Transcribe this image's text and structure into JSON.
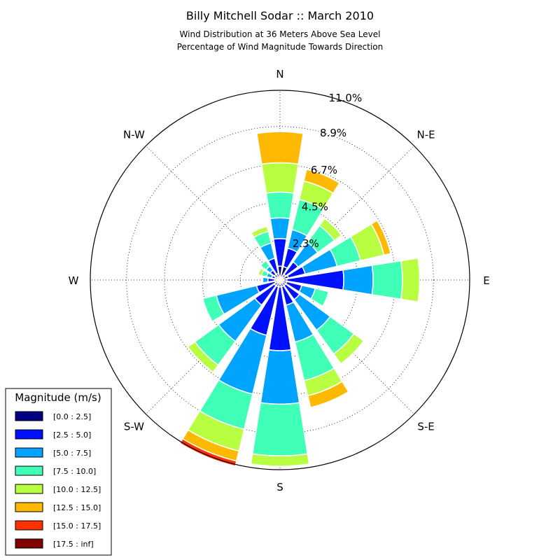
{
  "chart_data": {
    "type": "windrose",
    "title": "Billy Mitchell Sodar :: March 2010",
    "subtitle_lines": [
      "Wind Distribution at 36 Meters Above Sea Level",
      "Percentage of Wind Magnitude Towards Direction"
    ],
    "direction_labels": [
      "N",
      "N-E",
      "E",
      "S-E",
      "S",
      "S-W",
      "W",
      "N-W"
    ],
    "radial_ticks": [
      2.3,
      4.5,
      6.7,
      8.9,
      11.0
    ],
    "radial_tick_labels": [
      "2.3%",
      "4.5%",
      "6.7%",
      "8.9%",
      "11.0%"
    ],
    "radial_max": 11.0,
    "sector_width_deg": 18,
    "legend": {
      "title": "Magnitude (m/s)",
      "placement": "lower-left",
      "bins": [
        {
          "label": "[0.0 : 2.5]",
          "color": "#000080"
        },
        {
          "label": "[2.5 : 5.0]",
          "color": "#0010ff"
        },
        {
          "label": "[5.0 : 7.5]",
          "color": "#00a4ff"
        },
        {
          "label": "[7.5 : 10.0]",
          "color": "#40ffb7"
        },
        {
          "label": "[10.0 : 12.5]",
          "color": "#b7ff40"
        },
        {
          "label": "[12.5 : 15.0]",
          "color": "#ffb900"
        },
        {
          "label": "[15.0 : 17.5]",
          "color": "#ff3000"
        },
        {
          "label": "[17.5 : inf]",
          "color": "#800000"
        }
      ]
    },
    "sectors": [
      {
        "direction_deg": 0,
        "cumulative_pct": [
          0.8,
          2.4,
          3.6,
          5.1,
          6.8,
          8.6,
          8.6,
          8.6
        ]
      },
      {
        "direction_deg": 22.5,
        "cumulative_pct": [
          0.8,
          1.9,
          3.0,
          4.8,
          5.9,
          6.6,
          6.6,
          6.6
        ]
      },
      {
        "direction_deg": 45,
        "cumulative_pct": [
          0.4,
          1.3,
          2.7,
          3.9,
          4.4,
          4.4,
          4.4,
          4.4
        ]
      },
      {
        "direction_deg": 67.5,
        "cumulative_pct": [
          0.5,
          1.5,
          3.4,
          4.8,
          6.2,
          6.6,
          6.6,
          6.6
        ]
      },
      {
        "direction_deg": 90,
        "cumulative_pct": [
          0.4,
          3.7,
          5.4,
          7.1,
          8.1,
          8.1,
          8.1,
          8.1
        ]
      },
      {
        "direction_deg": 112.5,
        "cumulative_pct": [
          0.4,
          1.3,
          2.1,
          2.9,
          2.9,
          2.9,
          2.9,
          2.9
        ]
      },
      {
        "direction_deg": 135,
        "cumulative_pct": [
          0.4,
          1.4,
          3.6,
          5.3,
          6.0,
          6.0,
          6.0,
          6.0
        ]
      },
      {
        "direction_deg": 157.5,
        "cumulative_pct": [
          0.4,
          1.5,
          3.7,
          6.0,
          6.9,
          7.6,
          7.6,
          7.6
        ]
      },
      {
        "direction_deg": 180,
        "cumulative_pct": [
          0.4,
          4.1,
          7.2,
          10.2,
          10.8,
          10.8,
          10.8,
          10.8
        ]
      },
      {
        "direction_deg": 202.5,
        "cumulative_pct": [
          0.4,
          3.3,
          6.8,
          8.9,
          10.2,
          10.8,
          11.1,
          11.1
        ]
      },
      {
        "direction_deg": 225,
        "cumulative_pct": [
          0.4,
          1.8,
          4.4,
          6.1,
          6.6,
          6.6,
          6.6,
          6.6
        ]
      },
      {
        "direction_deg": 247.5,
        "cumulative_pct": [
          0.3,
          1.4,
          3.8,
          4.6,
          4.6,
          4.6,
          4.6,
          4.6
        ]
      },
      {
        "direction_deg": 270,
        "cumulative_pct": [
          0.3,
          0.7,
          1.0,
          1.0,
          1.0,
          1.0,
          1.0,
          1.0
        ]
      },
      {
        "direction_deg": 292.5,
        "cumulative_pct": [
          0.3,
          0.5,
          0.8,
          1.1,
          1.3,
          1.3,
          1.3,
          1.3
        ]
      },
      {
        "direction_deg": 315,
        "cumulative_pct": [
          0.4,
          0.7,
          1.0,
          1.4,
          1.4,
          1.4,
          1.4,
          1.4
        ]
      },
      {
        "direction_deg": 337.5,
        "cumulative_pct": [
          0.4,
          1.3,
          2.2,
          2.9,
          3.2,
          3.2,
          3.2,
          3.2
        ]
      }
    ]
  }
}
